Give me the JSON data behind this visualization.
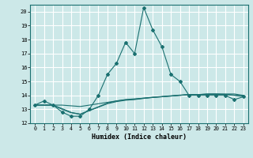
{
  "title": "",
  "xlabel": "Humidex (Indice chaleur)",
  "bg_color": "#cce8e8",
  "grid_color": "#ffffff",
  "line_color": "#1a7070",
  "xlim": [
    -0.5,
    23.5
  ],
  "ylim": [
    12,
    20.5
  ],
  "yticks": [
    12,
    13,
    14,
    15,
    16,
    17,
    18,
    19,
    20
  ],
  "xticks": [
    0,
    1,
    2,
    3,
    4,
    5,
    6,
    7,
    8,
    9,
    10,
    11,
    12,
    13,
    14,
    15,
    16,
    17,
    18,
    19,
    20,
    21,
    22,
    23
  ],
  "line1": [
    13.3,
    13.6,
    13.3,
    12.8,
    12.5,
    12.5,
    13.0,
    14.0,
    15.5,
    16.3,
    17.8,
    17.0,
    20.3,
    18.7,
    17.5,
    15.5,
    15.0,
    14.0,
    14.0,
    14.0,
    14.0,
    14.0,
    13.7,
    13.9
  ],
  "line2": [
    13.3,
    13.3,
    13.3,
    13.3,
    13.25,
    13.2,
    13.3,
    13.4,
    13.5,
    13.6,
    13.7,
    13.75,
    13.8,
    13.85,
    13.9,
    13.95,
    14.0,
    14.05,
    14.05,
    14.1,
    14.1,
    14.1,
    14.1,
    14.0
  ],
  "line3": [
    13.3,
    13.3,
    13.3,
    13.0,
    12.75,
    12.65,
    12.9,
    13.15,
    13.4,
    13.55,
    13.65,
    13.7,
    13.78,
    13.85,
    13.9,
    13.95,
    14.0,
    14.05,
    14.05,
    14.07,
    14.08,
    14.05,
    14.0,
    13.92
  ],
  "line4": [
    13.3,
    13.3,
    13.3,
    13.05,
    12.78,
    12.65,
    12.92,
    13.18,
    13.45,
    13.6,
    13.68,
    13.72,
    13.8,
    13.87,
    13.92,
    13.97,
    14.02,
    14.06,
    14.06,
    14.09,
    14.09,
    14.07,
    14.02,
    13.95
  ]
}
